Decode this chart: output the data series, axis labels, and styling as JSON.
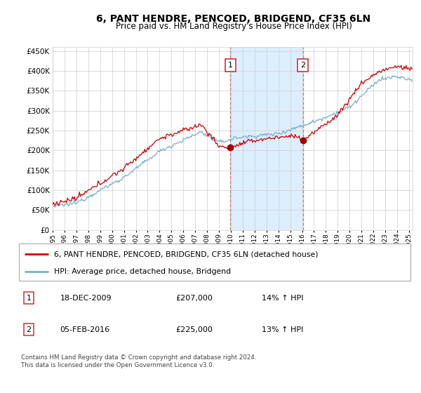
{
  "title": "6, PANT HENDRE, PENCOED, BRIDGEND, CF35 6LN",
  "subtitle": "Price paid vs. HM Land Registry's House Price Index (HPI)",
  "ylim": [
    0,
    460000
  ],
  "yticks": [
    0,
    50000,
    100000,
    150000,
    200000,
    250000,
    300000,
    350000,
    400000,
    450000
  ],
  "xlim_start": 1995,
  "xlim_end": 2025.3,
  "marker1_date": 2009.96,
  "marker1_price": 207000,
  "marker1_label": "1",
  "marker1_row": "18-DEC-2009",
  "marker1_price_str": "£207,000",
  "marker1_hpi": "14% ↑ HPI",
  "marker2_date": 2016.08,
  "marker2_price": 225000,
  "marker2_label": "2",
  "marker2_row": "05-FEB-2016",
  "marker2_price_str": "£225,000",
  "marker2_hpi": "13% ↑ HPI",
  "legend_line1": "6, PANT HENDRE, PENCOED, BRIDGEND, CF35 6LN (detached house)",
  "legend_line2": "HPI: Average price, detached house, Bridgend",
  "footer": "Contains HM Land Registry data © Crown copyright and database right 2024.\nThis data is licensed under the Open Government Licence v3.0.",
  "line_color_red": "#cc0000",
  "line_color_blue": "#7aadcf",
  "shaded_color": "#ddeeff",
  "vline_color": "#dd6666",
  "bg_color": "#ffffff",
  "grid_color": "#cccccc",
  "marker_box_edge": "#cc3333"
}
